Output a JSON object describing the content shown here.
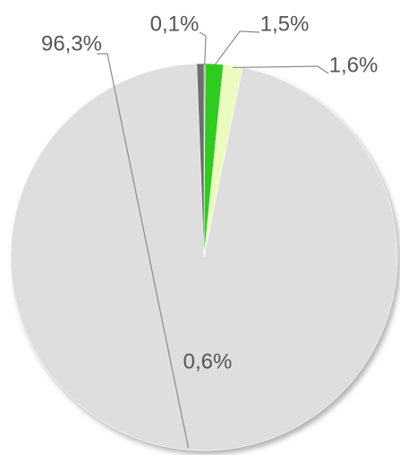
{
  "chart_data": {
    "type": "pie",
    "categories": [
      null,
      null,
      null,
      null,
      null
    ],
    "values": [
      0.1,
      1.5,
      1.6,
      96.3,
      0.6
    ],
    "value_labels": [
      "0,1%",
      "1,5%",
      "1,6%",
      "96,3%",
      "0,6%"
    ],
    "colors": [
      "#9a9a9a",
      "#2ecc1e",
      "#ecfcc0",
      "#dedede",
      "#6e6e6e"
    ]
  }
}
